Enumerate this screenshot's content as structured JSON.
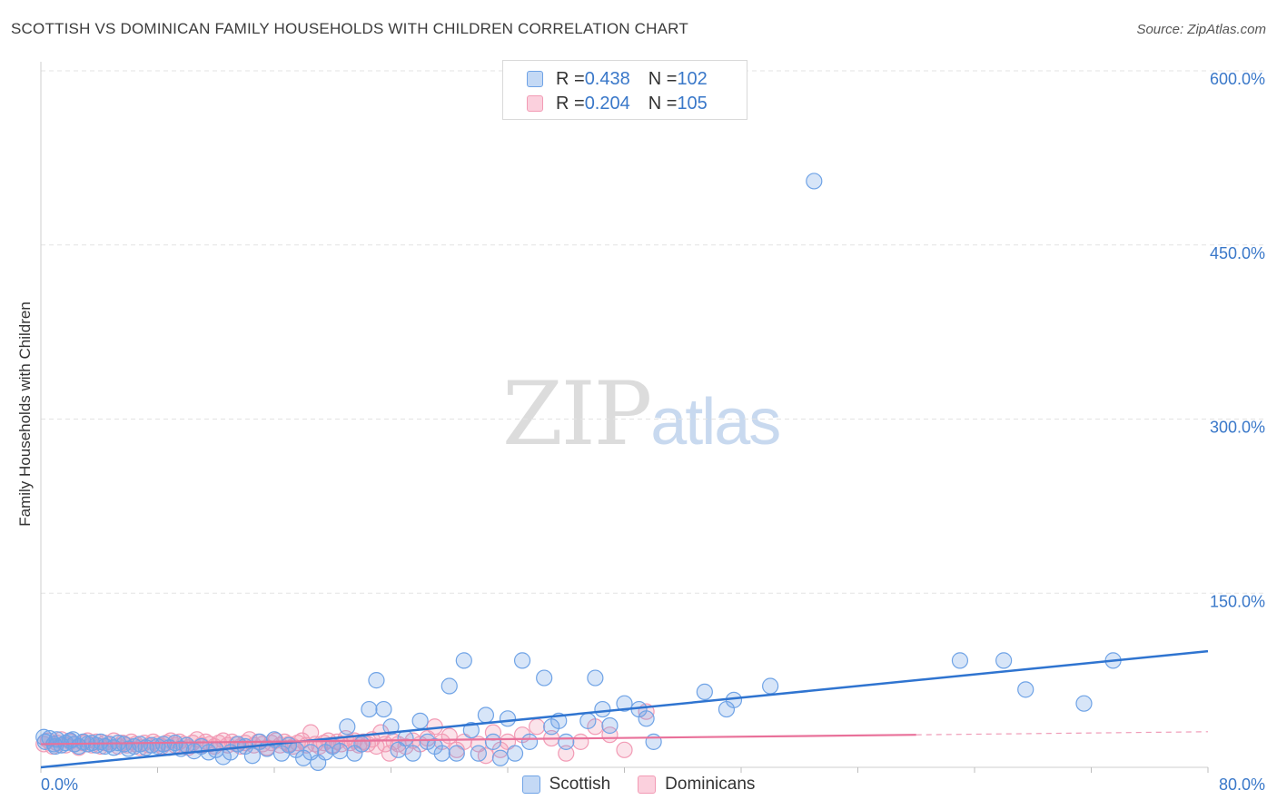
{
  "title": "SCOTTISH VS DOMINICAN FAMILY HOUSEHOLDS WITH CHILDREN CORRELATION CHART",
  "source": "Source: ZipAtlas.com",
  "watermark": {
    "part1": "ZIP",
    "part2": "atlas"
  },
  "legend": {
    "scottish": {
      "r_label": "R = ",
      "r_value": "0.438",
      "n_label": "N = ",
      "n_value": "102",
      "color": "#6fa3e6"
    },
    "dominicans": {
      "r_label": "R = ",
      "r_value": "0.204",
      "n_label": "N = ",
      "n_value": "105",
      "color": "#f29bb5"
    }
  },
  "chart_data": {
    "type": "scatter",
    "title": "SCOTTISH VS DOMINICAN FAMILY HOUSEHOLDS WITH CHILDREN CORRELATION CHART",
    "xlabel": "",
    "ylabel": "Family Households with Children",
    "xlim": [
      0,
      80
    ],
    "ylim": [
      0,
      600
    ],
    "x_tick_labels": [
      "0.0%",
      "80.0%"
    ],
    "y_ticks": [
      150,
      300,
      450,
      600
    ],
    "y_tick_labels": [
      "150.0%",
      "300.0%",
      "450.0%",
      "600.0%"
    ],
    "grid": "horizontal dashed",
    "legend_position": "top-center",
    "series": [
      {
        "name": "Scottish",
        "color": "#6fa3e6",
        "trend": {
          "x": [
            0,
            80
          ],
          "y": [
            0,
            100
          ]
        },
        "points": [
          [
            0.3,
            22
          ],
          [
            0.6,
            25
          ],
          [
            0.9,
            20
          ],
          [
            1.1,
            24
          ],
          [
            1.4,
            19
          ],
          [
            1.7,
            21
          ],
          [
            2.0,
            23
          ],
          [
            2.3,
            20
          ],
          [
            2.6,
            18
          ],
          [
            2.9,
            22
          ],
          [
            3.2,
            20
          ],
          [
            3.5,
            21
          ],
          [
            3.8,
            19
          ],
          [
            4.1,
            22
          ],
          [
            4.4,
            18
          ],
          [
            4.7,
            20
          ],
          [
            5.0,
            17
          ],
          [
            5.3,
            21
          ],
          [
            5.7,
            20
          ],
          [
            6.0,
            16
          ],
          [
            6.4,
            18
          ],
          [
            6.8,
            20
          ],
          [
            7.2,
            17
          ],
          [
            7.6,
            19
          ],
          [
            8.0,
            18
          ],
          [
            8.4,
            20
          ],
          [
            8.8,
            17
          ],
          [
            9.2,
            21
          ],
          [
            9.6,
            16
          ],
          [
            10.0,
            19
          ],
          [
            10.5,
            14
          ],
          [
            11.0,
            18
          ],
          [
            11.5,
            13
          ],
          [
            12.0,
            15
          ],
          [
            12.5,
            9
          ],
          [
            13.0,
            13
          ],
          [
            13.5,
            20
          ],
          [
            14.0,
            18
          ],
          [
            14.5,
            10
          ],
          [
            15.0,
            22
          ],
          [
            15.5,
            16
          ],
          [
            16.0,
            24
          ],
          [
            16.5,
            12
          ],
          [
            17.0,
            19
          ],
          [
            17.5,
            15
          ],
          [
            18.0,
            8
          ],
          [
            18.5,
            13
          ],
          [
            19.0,
            4
          ],
          [
            19.5,
            13
          ],
          [
            20.0,
            18
          ],
          [
            20.5,
            14
          ],
          [
            21.0,
            35
          ],
          [
            21.5,
            12
          ],
          [
            22.0,
            20
          ],
          [
            22.5,
            50
          ],
          [
            23.0,
            75
          ],
          [
            23.5,
            50
          ],
          [
            24.0,
            35
          ],
          [
            24.5,
            15
          ],
          [
            25.0,
            25
          ],
          [
            25.5,
            12
          ],
          [
            26.0,
            40
          ],
          [
            26.5,
            22
          ],
          [
            27.0,
            18
          ],
          [
            27.5,
            12
          ],
          [
            28.0,
            70
          ],
          [
            28.5,
            12
          ],
          [
            29.0,
            92
          ],
          [
            29.5,
            32
          ],
          [
            30.0,
            12
          ],
          [
            30.5,
            45
          ],
          [
            31.0,
            22
          ],
          [
            31.5,
            8
          ],
          [
            32.0,
            42
          ],
          [
            32.5,
            12
          ],
          [
            33.0,
            92
          ],
          [
            33.5,
            22
          ],
          [
            34.5,
            77
          ],
          [
            35.0,
            35
          ],
          [
            35.5,
            40
          ],
          [
            36.0,
            22
          ],
          [
            37.5,
            40
          ],
          [
            38.0,
            77
          ],
          [
            38.5,
            50
          ],
          [
            39.0,
            36
          ],
          [
            40.0,
            55
          ],
          [
            41.0,
            50
          ],
          [
            41.5,
            42
          ],
          [
            42.0,
            22
          ],
          [
            45.5,
            65
          ],
          [
            47.0,
            50
          ],
          [
            47.5,
            58
          ],
          [
            50.0,
            70
          ],
          [
            53.0,
            505
          ],
          [
            63.0,
            92
          ],
          [
            66.0,
            92
          ],
          [
            67.5,
            67
          ],
          [
            71.5,
            55
          ],
          [
            73.5,
            92
          ],
          [
            0.2,
            26
          ],
          [
            1.0,
            18
          ],
          [
            2.2,
            24
          ]
        ]
      },
      {
        "name": "Dominicans",
        "color": "#f29bb5",
        "trend": {
          "x": [
            0,
            60
          ],
          "y": [
            20,
            28
          ]
        },
        "points": [
          [
            0.2,
            20
          ],
          [
            0.5,
            23
          ],
          [
            0.8,
            18
          ],
          [
            1.1,
            21
          ],
          [
            1.4,
            24
          ],
          [
            1.7,
            19
          ],
          [
            2.0,
            22
          ],
          [
            2.3,
            20
          ],
          [
            2.6,
            17
          ],
          [
            2.9,
            21
          ],
          [
            3.2,
            23
          ],
          [
            3.5,
            19
          ],
          [
            3.8,
            22
          ],
          [
            4.1,
            18
          ],
          [
            4.4,
            21
          ],
          [
            4.7,
            20
          ],
          [
            5.0,
            23
          ],
          [
            5.3,
            18
          ],
          [
            5.6,
            21
          ],
          [
            5.9,
            19
          ],
          [
            6.2,
            22
          ],
          [
            6.5,
            20
          ],
          [
            6.8,
            17
          ],
          [
            7.1,
            21
          ],
          [
            7.4,
            19
          ],
          [
            7.7,
            22
          ],
          [
            8.0,
            20
          ],
          [
            8.3,
            18
          ],
          [
            8.6,
            21
          ],
          [
            8.9,
            23
          ],
          [
            9.2,
            19
          ],
          [
            9.5,
            22
          ],
          [
            9.8,
            20
          ],
          [
            10.1,
            17
          ],
          [
            10.4,
            21
          ],
          [
            10.7,
            24
          ],
          [
            11.0,
            19
          ],
          [
            11.3,
            22
          ],
          [
            11.6,
            20
          ],
          [
            11.9,
            18
          ],
          [
            12.2,
            21
          ],
          [
            12.5,
            23
          ],
          [
            12.8,
            19
          ],
          [
            13.1,
            22
          ],
          [
            13.4,
            20
          ],
          [
            13.7,
            18
          ],
          [
            14.0,
            21
          ],
          [
            14.3,
            24
          ],
          [
            14.6,
            19
          ],
          [
            14.9,
            22
          ],
          [
            15.2,
            20
          ],
          [
            15.5,
            17
          ],
          [
            15.8,
            21
          ],
          [
            16.1,
            23
          ],
          [
            16.4,
            19
          ],
          [
            16.7,
            22
          ],
          [
            17.0,
            20
          ],
          [
            17.3,
            18
          ],
          [
            17.6,
            21
          ],
          [
            17.9,
            23
          ],
          [
            18.2,
            19
          ],
          [
            18.5,
            30
          ],
          [
            18.8,
            20
          ],
          [
            19.1,
            18
          ],
          [
            19.4,
            21
          ],
          [
            19.7,
            23
          ],
          [
            20.0,
            19
          ],
          [
            20.3,
            22
          ],
          [
            20.6,
            20
          ],
          [
            20.9,
            25
          ],
          [
            21.2,
            21
          ],
          [
            21.5,
            23
          ],
          [
            21.8,
            19
          ],
          [
            22.1,
            22
          ],
          [
            22.4,
            20
          ],
          [
            22.7,
            24
          ],
          [
            23.0,
            18
          ],
          [
            23.3,
            30
          ],
          [
            23.6,
            20
          ],
          [
            23.9,
            12
          ],
          [
            24.2,
            22
          ],
          [
            24.5,
            20
          ],
          [
            25.0,
            18
          ],
          [
            25.5,
            23
          ],
          [
            26.0,
            20
          ],
          [
            26.5,
            25
          ],
          [
            27.0,
            35
          ],
          [
            27.5,
            22
          ],
          [
            28.0,
            27
          ],
          [
            28.5,
            15
          ],
          [
            29.0,
            22
          ],
          [
            30.0,
            20
          ],
          [
            30.5,
            10
          ],
          [
            31.0,
            30
          ],
          [
            31.5,
            15
          ],
          [
            32.0,
            22
          ],
          [
            33.0,
            28
          ],
          [
            34.0,
            35
          ],
          [
            35.0,
            25
          ],
          [
            36.0,
            12
          ],
          [
            37.0,
            22
          ],
          [
            38.0,
            35
          ],
          [
            39.0,
            28
          ],
          [
            40.0,
            15
          ],
          [
            41.5,
            48
          ]
        ]
      }
    ]
  }
}
